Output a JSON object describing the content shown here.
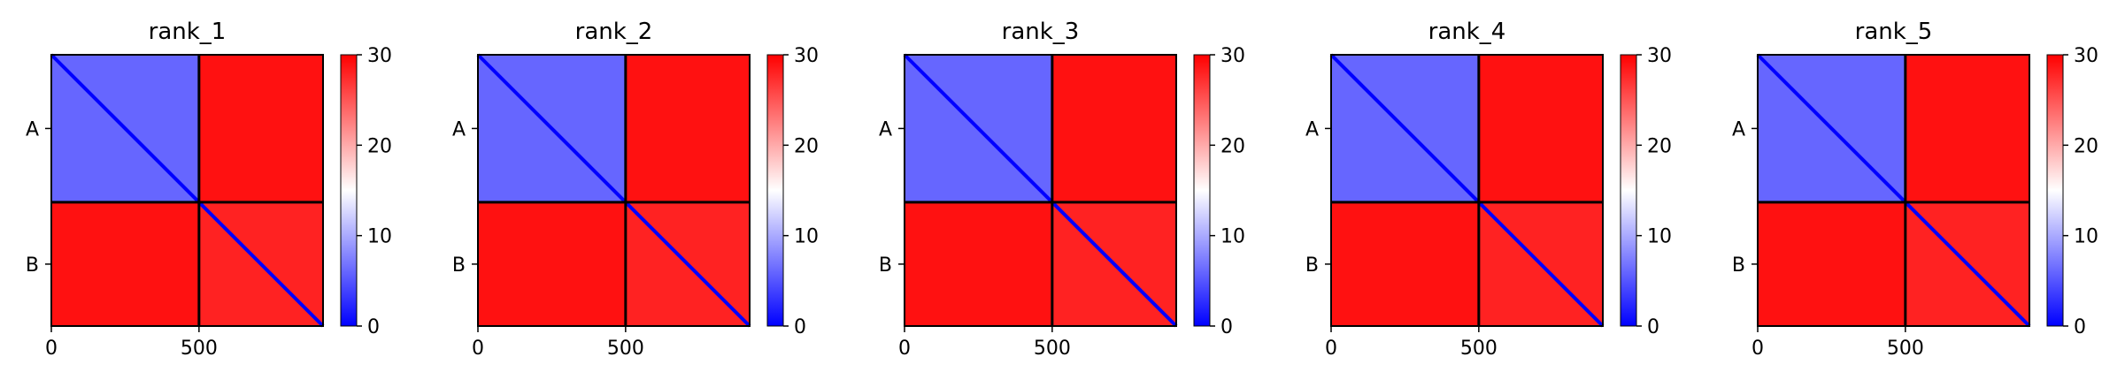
{
  "chart_data": [
    {
      "type": "heatmap",
      "title": "rank_1",
      "x_ticks": [
        "0",
        "500"
      ],
      "y_ticks": [
        "A",
        "B"
      ],
      "colorbar": {
        "ticks": [
          "0",
          "10",
          "20",
          "30"
        ],
        "range": [
          0,
          30
        ],
        "colors": [
          "#0000ff",
          "#ffffff",
          "#ff0000"
        ]
      },
      "axis_range": [
        0,
        920
      ],
      "chain_break": 500,
      "chains": [
        {
          "name": "A",
          "range": [
            0,
            500
          ]
        },
        {
          "name": "B",
          "range": [
            500,
            920
          ]
        }
      ],
      "blocks": {
        "AA": 6,
        "AB": 29,
        "BA": 29,
        "BB": 28
      },
      "ylim": [
        920,
        0
      ]
    },
    {
      "type": "heatmap",
      "title": "rank_2",
      "x_ticks": [
        "0",
        "500"
      ],
      "y_ticks": [
        "A",
        "B"
      ],
      "colorbar": {
        "ticks": [
          "0",
          "10",
          "20",
          "30"
        ],
        "range": [
          0,
          30
        ],
        "colors": [
          "#0000ff",
          "#ffffff",
          "#ff0000"
        ]
      },
      "axis_range": [
        0,
        920
      ],
      "chain_break": 500,
      "chains": [
        {
          "name": "A",
          "range": [
            0,
            500
          ]
        },
        {
          "name": "B",
          "range": [
            500,
            920
          ]
        }
      ],
      "blocks": {
        "AA": 6,
        "AB": 29,
        "BA": 29,
        "BB": 28
      },
      "ylim": [
        920,
        0
      ]
    },
    {
      "type": "heatmap",
      "title": "rank_3",
      "x_ticks": [
        "0",
        "500"
      ],
      "y_ticks": [
        "A",
        "B"
      ],
      "colorbar": {
        "ticks": [
          "0",
          "10",
          "20",
          "30"
        ],
        "range": [
          0,
          30
        ],
        "colors": [
          "#0000ff",
          "#ffffff",
          "#ff0000"
        ]
      },
      "axis_range": [
        0,
        920
      ],
      "chain_break": 500,
      "chains": [
        {
          "name": "A",
          "range": [
            0,
            500
          ]
        },
        {
          "name": "B",
          "range": [
            500,
            920
          ]
        }
      ],
      "blocks": {
        "AA": 6,
        "AB": 29,
        "BA": 29,
        "BB": 28
      },
      "ylim": [
        920,
        0
      ]
    },
    {
      "type": "heatmap",
      "title": "rank_4",
      "x_ticks": [
        "0",
        "500"
      ],
      "y_ticks": [
        "A",
        "B"
      ],
      "colorbar": {
        "ticks": [
          "0",
          "10",
          "20",
          "30"
        ],
        "range": [
          0,
          30
        ],
        "colors": [
          "#0000ff",
          "#ffffff",
          "#ff0000"
        ]
      },
      "axis_range": [
        0,
        920
      ],
      "chain_break": 500,
      "chains": [
        {
          "name": "A",
          "range": [
            0,
            500
          ]
        },
        {
          "name": "B",
          "range": [
            500,
            920
          ]
        }
      ],
      "blocks": {
        "AA": 6,
        "AB": 29,
        "BA": 29,
        "BB": 28
      },
      "ylim": [
        920,
        0
      ]
    },
    {
      "type": "heatmap",
      "title": "rank_5",
      "x_ticks": [
        "0",
        "500"
      ],
      "y_ticks": [
        "A",
        "B"
      ],
      "colorbar": {
        "ticks": [
          "0",
          "10",
          "20",
          "30"
        ],
        "range": [
          0,
          30
        ],
        "colors": [
          "#0000ff",
          "#ffffff",
          "#ff0000"
        ]
      },
      "axis_range": [
        0,
        920
      ],
      "chain_break": 500,
      "chains": [
        {
          "name": "A",
          "range": [
            0,
            500
          ]
        },
        {
          "name": "B",
          "range": [
            500,
            920
          ]
        }
      ],
      "blocks": {
        "AA": 6,
        "AB": 29,
        "BA": 29,
        "BB": 28
      },
      "ylim": [
        920,
        0
      ]
    }
  ]
}
